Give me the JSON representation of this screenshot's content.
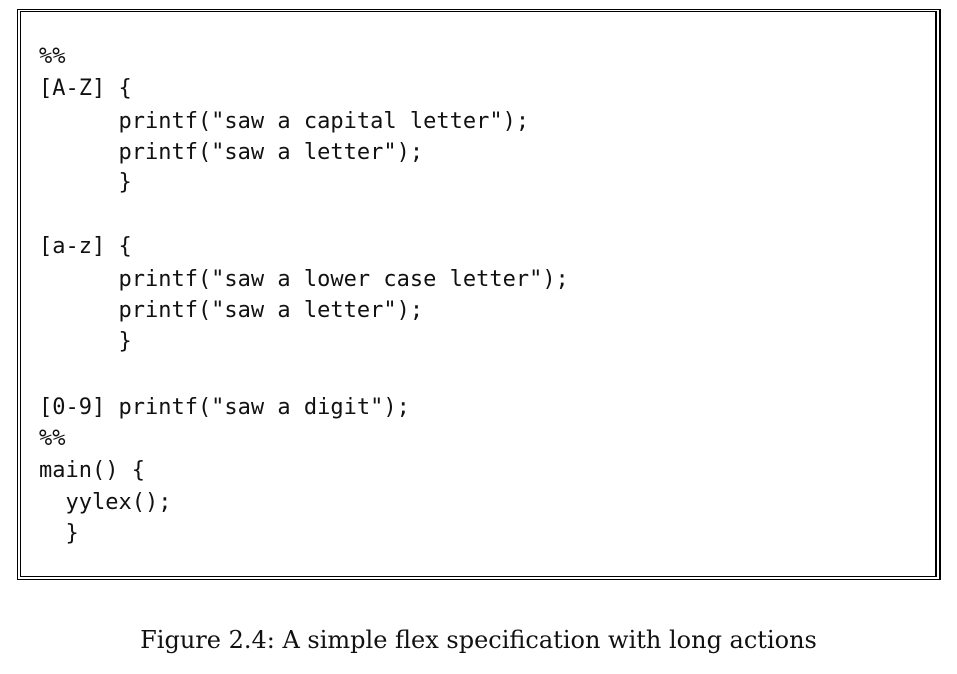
{
  "code_lines": [
    "%%",
    "[A-Z] {",
    "      printf(\"saw a capital letter\");",
    "      printf(\"saw a letter\");",
    "      }",
    "",
    "[a-z] {",
    "      printf(\"saw a lower case letter\");",
    "      printf(\"saw a letter\");",
    "      }",
    "",
    "[0-9] printf(\"saw a digit\");",
    "%%",
    "main() {",
    "  yylex();",
    "  }"
  ],
  "caption": "Figure 2.4: A simple flex specification with long actions"
}
